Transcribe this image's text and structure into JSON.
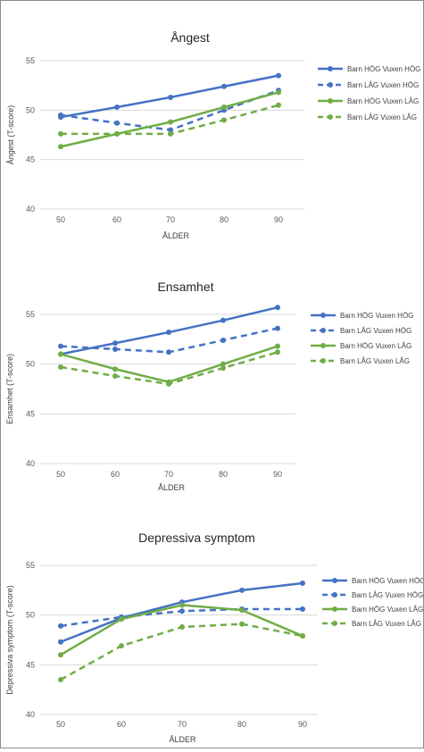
{
  "colors": {
    "blue": "#4472c4",
    "green": "#70ad47",
    "darkgreen": "#5a9a3a"
  },
  "chart_data": [
    {
      "type": "line",
      "title": "Ångest",
      "xlabel": "ÅLDER",
      "ylabel": "Ångest (T-score)",
      "x": [
        50,
        60,
        70,
        80,
        90
      ],
      "ylim": [
        40,
        55
      ],
      "yticks": [
        "40",
        "45",
        "50",
        "55"
      ],
      "grid": true,
      "legend_position": "right",
      "series": [
        {
          "name": "Barn HÖG Vuxen HÖG",
          "color": "blue",
          "dashed": false,
          "values": [
            49.3,
            50.3,
            51.3,
            52.4,
            53.5
          ]
        },
        {
          "name": "Barn LÅG Vuxen HÖG",
          "color": "blue",
          "dashed": true,
          "values": [
            49.5,
            48.7,
            48.0,
            50.0,
            52.0
          ]
        },
        {
          "name": "Barn HÖG Vuxen LÅG",
          "color": "green",
          "dashed": false,
          "values": [
            46.3,
            47.6,
            48.8,
            50.3,
            51.8
          ]
        },
        {
          "name": "Barn LÅG Vuxen LÅG",
          "color": "green",
          "dashed": true,
          "values": [
            47.6,
            47.6,
            47.6,
            49.0,
            50.5
          ]
        }
      ]
    },
    {
      "type": "line",
      "title": "Ensamhet",
      "xlabel": "ÅLDER",
      "ylabel": "Ensamhet (T-score)",
      "x": [
        50,
        60,
        70,
        80,
        90
      ],
      "ylim": [
        40,
        55
      ],
      "yticks": [
        "40",
        "45",
        "50",
        "55"
      ],
      "grid": true,
      "legend_position": "right",
      "series": [
        {
          "name": "Barn HÖG Vuxen HÖG",
          "color": "blue",
          "dashed": false,
          "values": [
            51.0,
            52.1,
            53.2,
            54.4,
            55.7
          ]
        },
        {
          "name": "Barn LÅG Vuxen HÖG",
          "color": "blue",
          "dashed": true,
          "values": [
            51.8,
            51.5,
            51.2,
            52.4,
            53.6
          ]
        },
        {
          "name": "Barn HÖG Vuxen LÅG",
          "color": "green",
          "dashed": false,
          "values": [
            51.0,
            49.5,
            48.2,
            50.0,
            51.8
          ]
        },
        {
          "name": "Barn LÅG Vuxen LÅG",
          "color": "green",
          "dashed": true,
          "values": [
            49.7,
            48.8,
            48.0,
            49.6,
            51.2
          ]
        }
      ]
    },
    {
      "type": "line",
      "title": "Depressiva symptom",
      "xlabel": "ÅLDER",
      "ylabel": "Depressiva symptom (T-score)",
      "x": [
        50,
        60,
        70,
        80,
        90
      ],
      "ylim": [
        40,
        55
      ],
      "yticks": [
        "40",
        "45",
        "50",
        "55"
      ],
      "grid": true,
      "legend_position": "right",
      "series": [
        {
          "name": "Barn HÖG Vuxen HÖG",
          "color": "blue",
          "dashed": false,
          "values": [
            47.3,
            49.7,
            51.3,
            52.5,
            53.2
          ]
        },
        {
          "name": "Barn LÅG Vuxen HÖG",
          "color": "blue",
          "dashed": true,
          "values": [
            48.9,
            49.8,
            50.4,
            50.6,
            50.6
          ]
        },
        {
          "name": "Barn HÖG Vuxen LÅG",
          "color": "green",
          "dashed": false,
          "values": [
            46.0,
            49.6,
            51.0,
            50.5,
            47.9
          ]
        },
        {
          "name": "Barn LÅG Vuxen LÅG",
          "color": "green",
          "dashed": true,
          "values": [
            43.5,
            46.9,
            48.8,
            49.1,
            47.9
          ]
        }
      ]
    }
  ]
}
